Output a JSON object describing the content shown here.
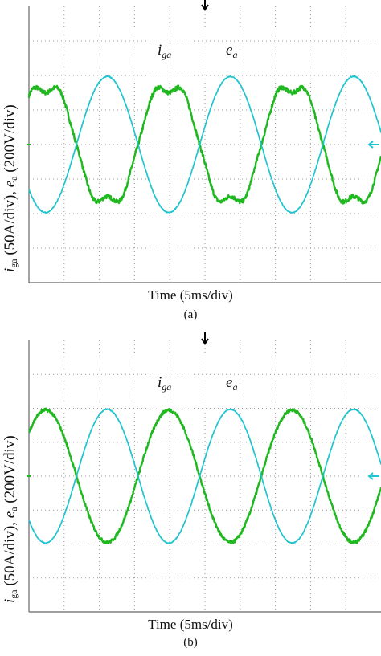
{
  "panels": [
    {
      "caption": "(a)",
      "xlabel": "Time (5ms/div)",
      "ylabel": {
        "current_sym": "i",
        "current_sub": "ga",
        "current_scale": "(50A/div),",
        "voltage_sym": "e",
        "voltage_sub": "a",
        "voltage_scale": "(200V/div)"
      },
      "labels": {
        "current_main": "i",
        "current_sub": "ga",
        "voltage_main": "e",
        "voltage_sub": "a"
      }
    },
    {
      "caption": "(b)",
      "xlabel": "Time (5ms/div)",
      "ylabel": {
        "current_sym": "i",
        "current_sub": "ga",
        "current_scale": "(50A/div),",
        "voltage_sym": "e",
        "voltage_sub": "a",
        "voltage_scale": "(200V/div)"
      },
      "labels": {
        "current_main": "i",
        "current_sub": "ga",
        "voltage_main": "e",
        "voltage_sub": "a"
      }
    }
  ],
  "colors": {
    "current": "#1fb81f",
    "voltage": "#1ec4cf",
    "grid": "#9a9a9a",
    "frame": "#666666",
    "marker": "#000000"
  },
  "chart_data": [
    {
      "type": "line",
      "title": "(a)",
      "xlabel": "Time (5ms/div)",
      "ylabel": "iga (50A/div), ea (200V/div)",
      "xlim": [
        0,
        10
      ],
      "ylim": [
        -4,
        4
      ],
      "grid": true,
      "x_unit": "div",
      "y_unit": "div",
      "series": [
        {
          "name": "iga",
          "color": "#1fb81f",
          "peak_div": 1.95,
          "period_div": 3.5,
          "phase_div": -0.4,
          "distortion": true
        },
        {
          "name": "ea",
          "color": "#1ec4cf",
          "peak_div": 1.97,
          "period_div": 3.5,
          "phase_div": 1.35
        }
      ]
    },
    {
      "type": "line",
      "title": "(b)",
      "xlabel": "Time (5ms/div)",
      "ylabel": "iga (50A/div), ea (200V/div)",
      "xlim": [
        0,
        10
      ],
      "ylim": [
        -4,
        4
      ],
      "grid": true,
      "x_unit": "div",
      "y_unit": "div",
      "series": [
        {
          "name": "iga",
          "color": "#1fb81f",
          "peak_div": 1.95,
          "period_div": 3.5,
          "phase_div": -0.4,
          "distortion": false
        },
        {
          "name": "ea",
          "color": "#1ec4cf",
          "peak_div": 1.97,
          "period_div": 3.5,
          "phase_div": 1.35
        }
      ]
    }
  ]
}
